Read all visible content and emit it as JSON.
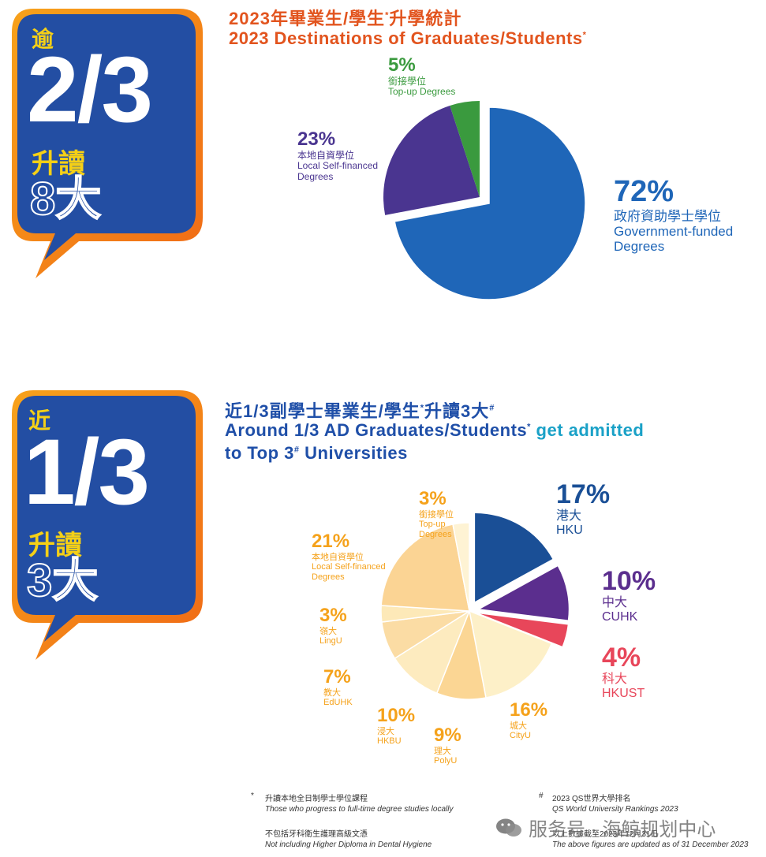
{
  "badge1": {
    "prefix": "逾",
    "big": "2/3",
    "line1": "升讀",
    "line2": "8大"
  },
  "badge2": {
    "prefix": "近",
    "big": "1/3",
    "line1": "升讀",
    "line2": "3大"
  },
  "section1": {
    "title_cn": "2023年畢業生/學生",
    "title_cn_sup": "*",
    "title_cn_tail": "升學統計",
    "title_en": "2023 Destinations of Graduates/Students",
    "title_en_sup": "*"
  },
  "section2": {
    "title_cn": "近1/3副學士畢業生/學生",
    "title_cn_sup": "*",
    "title_cn_tail": "升讀3大",
    "title_cn_sup2": "#",
    "title_en_a": "Around 1/3 AD Graduates/Students",
    "title_en_sup": "*",
    "title_en_b": " get admitted",
    "title_en_c": "to Top 3",
    "title_en_sup2": "#",
    "title_en_d": " Universities"
  },
  "chart_data": [
    {
      "type": "pie",
      "slices": [
        {
          "pct_label": "72%",
          "value": 72,
          "cn": "政府資助學士學位",
          "en": "Government-funded",
          "en2": "Degrees",
          "color": "#1f66b8"
        },
        {
          "pct_label": "23%",
          "value": 23,
          "cn": "本地自資學位",
          "en": "Local Self-financed",
          "en2": "Degrees",
          "color": "#4a3590"
        },
        {
          "pct_label": "5%",
          "value": 5,
          "cn": "銜接學位",
          "en": "Top-up Degrees",
          "en2": "",
          "color": "#3a9a3e"
        }
      ]
    },
    {
      "type": "pie",
      "slices": [
        {
          "pct_label": "17%",
          "value": 17,
          "cn": "港大",
          "en": "HKU",
          "color": "#1a4f96"
        },
        {
          "pct_label": "10%",
          "value": 10,
          "cn": "中大",
          "en": "CUHK",
          "color": "#5b2e8e"
        },
        {
          "pct_label": "4%",
          "value": 4,
          "cn": "科大",
          "en": "HKUST",
          "color": "#e8465a"
        },
        {
          "pct_label": "16%",
          "value": 16,
          "cn": "城大",
          "en": "CityU",
          "color": "#fdf0c8"
        },
        {
          "pct_label": "9%",
          "value": 9,
          "cn": "理大",
          "en": "PolyU",
          "color": "#fbd694"
        },
        {
          "pct_label": "10%",
          "value": 10,
          "cn": "浸大",
          "en": "HKBU",
          "color": "#fdebbf"
        },
        {
          "pct_label": "7%",
          "value": 7,
          "cn": "教大",
          "en": "EdUHK",
          "color": "#fbdca4"
        },
        {
          "pct_label": "3%",
          "value": 3,
          "cn": "嶺大",
          "en": "LingU",
          "color": "#fde9b8"
        },
        {
          "pct_label": "21%",
          "value": 21,
          "cn": "本地自資學位",
          "en": "Local Self-financed",
          "en2": "Degrees",
          "color": "#fbd494"
        },
        {
          "pct_label": "3%",
          "value": 3,
          "cn": "銜接學位",
          "en": "Top-up",
          "en2": "Degrees",
          "color": "#fef3d4"
        }
      ]
    }
  ],
  "footnotes": {
    "star_mark": "*",
    "star_cn": "升讀本地全日制學士學位課程",
    "star_en": "Those who progress to full-time degree studies locally",
    "dental_cn": "不包括牙科衛生護理高級文憑",
    "dental_en": "Not including Higher Diploma in Dental Hygiene",
    "hash_mark": "#",
    "hash_cn": "2023 QS世界大學排名",
    "hash_en": "QS World University Rankings 2023",
    "update_cn": "以上數據截至2023年12月31日",
    "update_en": "The above figures are updated as of 31 December 2023"
  },
  "watermark": "服务号 · 海鲸规划中心"
}
